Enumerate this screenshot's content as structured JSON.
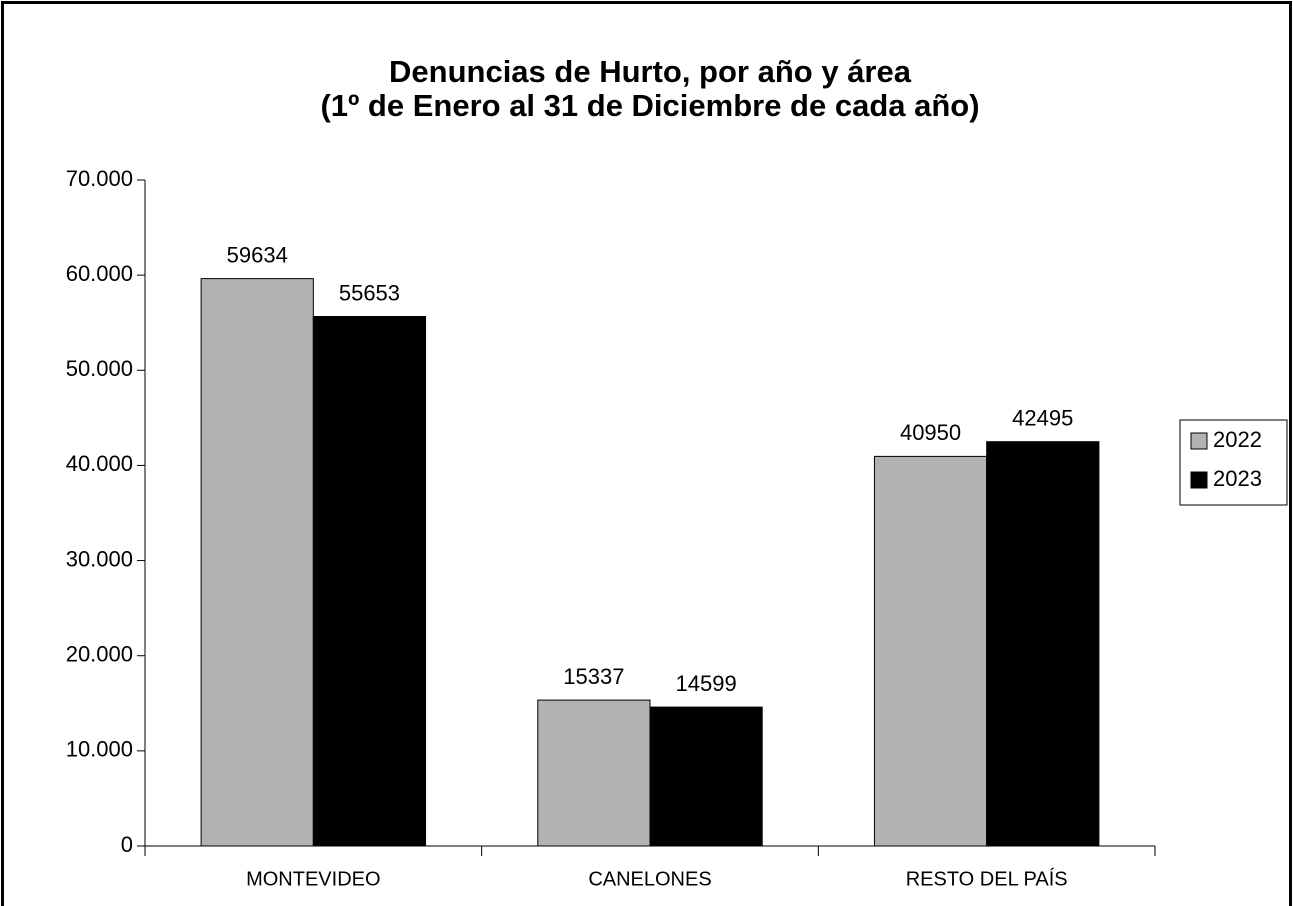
{
  "chart_data": {
    "type": "bar",
    "title": "Denuncias de Hurto, por año y área",
    "subtitle": "(1º de Enero al 31 de Diciembre de cada año)",
    "categories": [
      "MONTEVIDEO",
      "CANELONES",
      "RESTO DEL PAÍS"
    ],
    "series": [
      {
        "name": "2022",
        "color": "#b2b2b2",
        "values": [
          59634,
          15337,
          40950
        ]
      },
      {
        "name": "2023",
        "color": "#000000",
        "values": [
          55653,
          14599,
          42495
        ]
      }
    ],
    "ylim": [
      0,
      70000
    ],
    "yticks": [
      0,
      {
        "value": 10000,
        "label": "10.000"
      },
      {
        "value": 20000,
        "label": "20.000"
      },
      {
        "value": 30000,
        "label": "30.000"
      },
      {
        "value": 40000,
        "label": "40.000"
      },
      {
        "value": 50000,
        "label": "50.000"
      },
      {
        "value": 60000,
        "label": "60.000"
      },
      {
        "value": 70000,
        "label": "70.000"
      }
    ],
    "legend": "right"
  }
}
